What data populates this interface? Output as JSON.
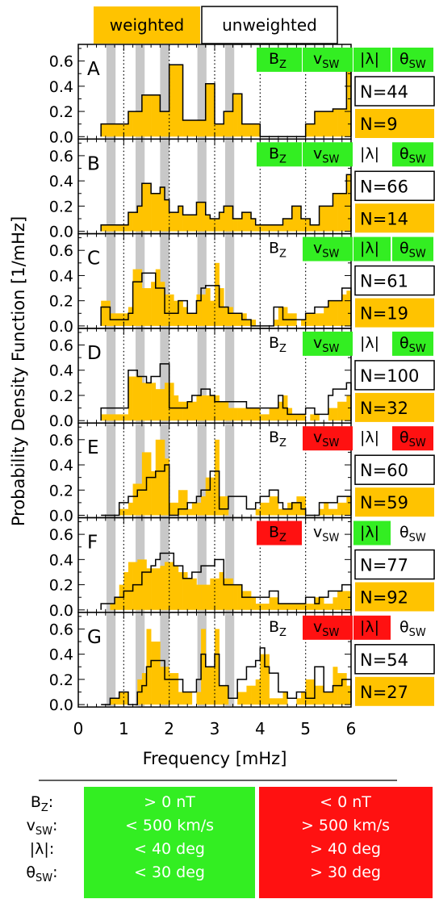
{
  "colors": {
    "weighted": "#FFC300",
    "green": "#33EE22",
    "red": "#FF1111",
    "shade": "#C8C8C8"
  },
  "legend": {
    "weighted": "weighted",
    "unweighted": "unweighted"
  },
  "axis": {
    "xlabel": "Frequency [mHz]",
    "ylabel": "Probability Density Function [1/mHz]",
    "xlim": [
      0,
      6
    ],
    "ylim": [
      0,
      0.7
    ],
    "xticks": [
      "0",
      "1",
      "2",
      "3",
      "4",
      "5",
      "6"
    ],
    "yticks": [
      "0.0",
      "0.2",
      "0.4",
      "0.6"
    ],
    "dotted_lines": [
      1.0,
      2.0,
      3.0,
      4.0,
      5.0
    ],
    "shaded_bands": [
      [
        0.62,
        0.82
      ],
      [
        1.26,
        1.46
      ],
      [
        1.8,
        2.0
      ],
      [
        2.62,
        2.82
      ],
      [
        3.23,
        3.43
      ]
    ]
  },
  "condition_labels": {
    "bz_main": "B",
    "bz_sub": "Z",
    "vsw_main": "v",
    "vsw_sub": "SW",
    "lambda": "|λ|",
    "theta_main": "θ",
    "theta_sub": "SW"
  },
  "chart_data": {
    "type": "bar",
    "bin_edges": [
      0.5,
      0.6,
      0.7,
      0.8,
      0.9,
      1.0,
      1.1,
      1.2,
      1.3,
      1.4,
      1.5,
      1.6,
      1.7,
      1.8,
      1.9,
      2.0,
      2.1,
      2.2,
      2.3,
      2.4,
      2.5,
      2.6,
      2.7,
      2.8,
      2.9,
      3.0,
      3.1,
      3.2,
      3.3,
      3.4,
      3.5,
      3.6,
      3.7,
      3.8,
      3.9,
      4.0,
      4.1,
      4.2,
      4.3,
      4.4,
      4.5,
      4.6,
      4.7,
      4.8,
      4.9,
      5.0,
      5.1,
      5.2,
      5.3,
      5.4,
      5.5,
      5.6,
      5.7,
      5.8,
      5.9,
      6.0
    ],
    "panels": [
      {
        "label": "A",
        "n_unweighted": "N=44",
        "n_weighted": "N=9",
        "conds": {
          "bz": "green",
          "vsw": "green",
          "lambda": "green",
          "theta": "green"
        },
        "weighted": [
          0.1,
          0.1,
          0.1,
          0.1,
          0.1,
          0.1,
          0.2,
          0.2,
          0.2,
          0.33,
          0.33,
          0.33,
          0.33,
          0.2,
          0.2,
          0.57,
          0.57,
          0.57,
          0.13,
          0.13,
          0.13,
          0.13,
          0.13,
          0.42,
          0.42,
          0.1,
          0.1,
          0.2,
          0.2,
          0.34,
          0.34,
          0.1,
          0.1,
          0.1,
          0.1,
          0.0,
          0.0,
          0.0,
          0.0,
          0.0,
          0.0,
          0.0,
          0.0,
          0.0,
          0.0,
          0.1,
          0.1,
          0.2,
          0.2,
          0.2,
          0.2,
          0.22,
          0.22,
          0.22,
          0.6
        ],
        "unweighted": [
          0.1,
          0.1,
          0.1,
          0.1,
          0.1,
          0.1,
          0.2,
          0.2,
          0.2,
          0.33,
          0.33,
          0.33,
          0.33,
          0.2,
          0.2,
          0.57,
          0.57,
          0.57,
          0.13,
          0.13,
          0.13,
          0.13,
          0.13,
          0.42,
          0.42,
          0.1,
          0.1,
          0.2,
          0.2,
          0.34,
          0.34,
          0.1,
          0.1,
          0.1,
          0.1,
          0.0,
          0.0,
          0.0,
          0.0,
          0.0,
          0.0,
          0.0,
          0.0,
          0.0,
          0.0,
          0.1,
          0.1,
          0.2,
          0.2,
          0.2,
          0.2,
          0.22,
          0.22,
          0.22,
          0.6
        ]
      },
      {
        "label": "B",
        "n_unweighted": "N=66",
        "n_weighted": "N=14",
        "conds": {
          "bz": "green",
          "vsw": "green",
          "lambda": "none",
          "theta": "green"
        },
        "weighted": [
          0.05,
          0.05,
          0.05,
          0.05,
          0.05,
          0.05,
          0.15,
          0.15,
          0.2,
          0.38,
          0.38,
          0.3,
          0.3,
          0.35,
          0.25,
          0.15,
          0.15,
          0.2,
          0.13,
          0.13,
          0.13,
          0.23,
          0.23,
          0.13,
          0.1,
          0.1,
          0.15,
          0.2,
          0.2,
          0.1,
          0.1,
          0.15,
          0.15,
          0.1,
          0.05,
          0.05,
          0.05,
          0.05,
          0.05,
          0.05,
          0.1,
          0.1,
          0.2,
          0.2,
          0.1,
          0.1,
          0.05,
          0.05,
          0.2,
          0.2,
          0.2,
          0.3,
          0.3,
          0.3,
          0.45
        ],
        "unweighted": [
          0.05,
          0.05,
          0.05,
          0.05,
          0.05,
          0.05,
          0.15,
          0.15,
          0.2,
          0.38,
          0.38,
          0.3,
          0.3,
          0.35,
          0.25,
          0.15,
          0.15,
          0.2,
          0.13,
          0.13,
          0.13,
          0.23,
          0.23,
          0.13,
          0.1,
          0.1,
          0.15,
          0.2,
          0.2,
          0.1,
          0.1,
          0.15,
          0.15,
          0.1,
          0.05,
          0.05,
          0.05,
          0.05,
          0.05,
          0.05,
          0.1,
          0.1,
          0.2,
          0.2,
          0.1,
          0.1,
          0.05,
          0.05,
          0.2,
          0.2,
          0.2,
          0.3,
          0.3,
          0.3,
          0.45
        ]
      },
      {
        "label": "C",
        "n_unweighted": "N=61",
        "n_weighted": "N=19",
        "conds": {
          "bz": "none",
          "vsw": "green",
          "lambda": "green",
          "theta": "green"
        },
        "weighted": [
          0.2,
          0.2,
          0.1,
          0.1,
          0.1,
          0.1,
          0.15,
          0.45,
          0.45,
          0.3,
          0.3,
          0.35,
          0.45,
          0.35,
          0.25,
          0.25,
          0.2,
          0.2,
          0.15,
          0.1,
          0.1,
          0.25,
          0.25,
          0.3,
          0.2,
          0.5,
          0.3,
          0.15,
          0.15,
          0.1,
          0.1,
          0.1,
          0.05,
          0.05,
          0.0,
          0.0,
          0.0,
          0.0,
          0.05,
          0.15,
          0.15,
          0.1,
          0.1,
          0.0,
          0.05,
          0.1,
          0.1,
          0.1,
          0.1,
          0.15,
          0.2,
          0.2,
          0.2,
          0.25,
          0.28
        ],
        "unweighted": [
          0.15,
          0.15,
          0.05,
          0.05,
          0.05,
          0.05,
          0.1,
          0.35,
          0.35,
          0.42,
          0.42,
          0.42,
          0.3,
          0.3,
          0.1,
          0.1,
          0.1,
          0.2,
          0.2,
          0.1,
          0.1,
          0.2,
          0.3,
          0.32,
          0.32,
          0.32,
          0.15,
          0.15,
          0.1,
          0.1,
          0.1,
          0.05,
          0.05,
          0.0,
          0.0,
          0.0,
          0.0,
          0.0,
          0.15,
          0.15,
          0.05,
          0.05,
          0.05,
          0.05,
          0.05,
          0.1,
          0.1,
          0.15,
          0.15,
          0.15,
          0.2,
          0.2,
          0.2,
          0.3,
          0.3
        ]
      },
      {
        "label": "D",
        "n_unweighted": "N=100",
        "n_weighted": "N=32",
        "conds": {
          "bz": "none",
          "vsw": "green",
          "lambda": "none",
          "theta": "green"
        },
        "weighted": [
          0.05,
          0.05,
          0.05,
          0.05,
          0.05,
          0.05,
          0.35,
          0.35,
          0.35,
          0.3,
          0.3,
          0.3,
          0.25,
          0.25,
          0.3,
          0.3,
          0.2,
          0.15,
          0.15,
          0.15,
          0.15,
          0.2,
          0.2,
          0.2,
          0.2,
          0.2,
          0.15,
          0.15,
          0.1,
          0.1,
          0.1,
          0.1,
          0.1,
          0.1,
          0.1,
          0.05,
          0.05,
          0.1,
          0.1,
          0.15,
          0.2,
          0.1,
          0.05,
          0.05,
          0.05,
          0.0,
          0.05,
          0.05,
          0.0,
          0.0,
          0.1,
          0.1,
          0.15,
          0.15,
          0.2
        ],
        "unweighted": [
          0.1,
          0.1,
          0.1,
          0.1,
          0.1,
          0.1,
          0.4,
          0.4,
          0.35,
          0.35,
          0.3,
          0.35,
          0.35,
          0.45,
          0.45,
          0.1,
          0.1,
          0.1,
          0.1,
          0.15,
          0.2,
          0.2,
          0.25,
          0.25,
          0.2,
          0.15,
          0.15,
          0.15,
          0.15,
          0.15,
          0.15,
          0.15,
          0.1,
          0.1,
          0.1,
          0.1,
          0.1,
          0.1,
          0.1,
          0.2,
          0.1,
          0.05,
          0.05,
          0.05,
          0.05,
          0.1,
          0.1,
          0.05,
          0.05,
          0.05,
          0.2,
          0.25,
          0.25,
          0.25,
          0.3
        ]
      },
      {
        "label": "E",
        "n_unweighted": "N=60",
        "n_weighted": "N=59",
        "conds": {
          "bz": "none",
          "vsw": "red",
          "lambda": "none",
          "theta": "red"
        },
        "weighted": [
          0.0,
          0.0,
          0.0,
          0.0,
          0.05,
          0.05,
          0.1,
          0.25,
          0.25,
          0.5,
          0.5,
          0.35,
          0.6,
          0.6,
          0.45,
          0.1,
          0.1,
          0.2,
          0.2,
          0.05,
          0.1,
          0.1,
          0.15,
          0.3,
          0.3,
          0.6,
          0.15,
          0.15,
          0.0,
          0.0,
          0.0,
          0.0,
          0.0,
          0.0,
          0.05,
          0.1,
          0.1,
          0.15,
          0.15,
          0.05,
          0.05,
          0.1,
          0.1,
          0.15,
          0.15,
          0.0,
          0.0,
          0.0,
          0.05,
          0.1,
          0.05,
          0.05,
          0.1,
          0.1,
          0.15
        ],
        "unweighted": [
          0.0,
          0.0,
          0.0,
          0.0,
          0.1,
          0.1,
          0.15,
          0.15,
          0.2,
          0.2,
          0.3,
          0.3,
          0.35,
          0.35,
          0.4,
          0.0,
          0.0,
          0.05,
          0.05,
          0.1,
          0.1,
          0.15,
          0.2,
          0.2,
          0.35,
          0.35,
          0.05,
          0.05,
          0.15,
          0.15,
          0.15,
          0.15,
          0.05,
          0.05,
          0.1,
          0.15,
          0.15,
          0.2,
          0.2,
          0.1,
          0.05,
          0.05,
          0.1,
          0.1,
          0.05,
          0.0,
          0.0,
          0.0,
          0.1,
          0.1,
          0.1,
          0.1,
          0.15,
          0.15,
          0.15
        ]
      },
      {
        "label": "F",
        "n_unweighted": "N=77",
        "n_weighted": "N=92",
        "conds": {
          "bz": "red",
          "vsw": "none",
          "lambda": "green",
          "theta": "none"
        },
        "weighted": [
          0.0,
          0.0,
          0.05,
          0.1,
          0.2,
          0.3,
          0.38,
          0.38,
          0.4,
          0.4,
          0.33,
          0.33,
          0.33,
          0.35,
          0.38,
          0.38,
          0.35,
          0.3,
          0.3,
          0.25,
          0.25,
          0.2,
          0.2,
          0.2,
          0.25,
          0.25,
          0.3,
          0.25,
          0.25,
          0.2,
          0.2,
          0.15,
          0.15,
          0.1,
          0.05,
          0.05,
          0.05,
          0.1,
          0.1,
          0.05,
          0.05,
          0.05,
          0.05,
          0.05,
          0.05,
          0.05,
          0.05,
          0.1,
          0.1,
          0.05,
          0.05,
          0.1,
          0.15,
          0.15,
          0.15
        ],
        "unweighted": [
          0.05,
          0.05,
          0.05,
          0.1,
          0.1,
          0.15,
          0.15,
          0.2,
          0.2,
          0.3,
          0.3,
          0.35,
          0.4,
          0.45,
          0.45,
          0.45,
          0.35,
          0.35,
          0.25,
          0.25,
          0.3,
          0.3,
          0.35,
          0.35,
          0.35,
          0.4,
          0.4,
          0.2,
          0.2,
          0.2,
          0.2,
          0.1,
          0.1,
          0.1,
          0.1,
          0.1,
          0.1,
          0.15,
          0.15,
          0.05,
          0.05,
          0.05,
          0.05,
          0.05,
          0.05,
          0.1,
          0.1,
          0.05,
          0.1,
          0.1,
          0.15,
          0.15,
          0.15,
          0.2,
          0.2
        ]
      },
      {
        "label": "G",
        "n_unweighted": "N=54",
        "n_weighted": "N=27",
        "conds": {
          "bz": "none",
          "vsw": "red",
          "lambda": "red",
          "theta": "none"
        },
        "weighted": [
          0.0,
          0.0,
          0.05,
          0.05,
          0.1,
          0.1,
          0.0,
          0.0,
          0.2,
          0.25,
          0.6,
          0.5,
          0.5,
          0.3,
          0.3,
          0.25,
          0.25,
          0.1,
          0.1,
          0.1,
          0.0,
          0.1,
          0.6,
          0.3,
          0.3,
          0.6,
          0.15,
          0.15,
          0.0,
          0.0,
          0.1,
          0.1,
          0.15,
          0.15,
          0.2,
          0.4,
          0.4,
          0.05,
          0.05,
          0.05,
          0.1,
          0.0,
          0.0,
          0.05,
          0.1,
          0.2,
          0.2,
          0.15,
          0.15,
          0.1,
          0.1,
          0.3,
          0.25,
          0.25,
          0.15
        ],
        "unweighted": [
          0.0,
          0.0,
          0.05,
          0.05,
          0.1,
          0.1,
          0.0,
          0.0,
          0.1,
          0.15,
          0.3,
          0.35,
          0.35,
          0.35,
          0.2,
          0.2,
          0.2,
          0.2,
          0.1,
          0.1,
          0.1,
          0.2,
          0.4,
          0.3,
          0.3,
          0.4,
          0.15,
          0.15,
          0.05,
          0.05,
          0.2,
          0.2,
          0.3,
          0.3,
          0.35,
          0.45,
          0.3,
          0.25,
          0.25,
          0.1,
          0.1,
          0.05,
          0.05,
          0.1,
          0.1,
          0.05,
          0.05,
          0.3,
          0.3,
          0.1,
          0.1,
          0.15,
          0.15,
          0.2,
          0.2
        ]
      }
    ]
  },
  "key": {
    "rows": [
      {
        "label_main": "B",
        "label_sub": "Z",
        "green": "> 0 nT",
        "red": "< 0 nT"
      },
      {
        "label_main": "v",
        "label_sub": "SW",
        "green": "< 500 km/s",
        "red": "> 500 km/s"
      },
      {
        "label_main": "|λ|",
        "label_sub": "",
        "green": "< 40 deg",
        "red": "> 40 deg"
      },
      {
        "label_main": "θ",
        "label_sub": "SW",
        "green": "< 30 deg",
        "red": "> 30 deg"
      }
    ]
  }
}
